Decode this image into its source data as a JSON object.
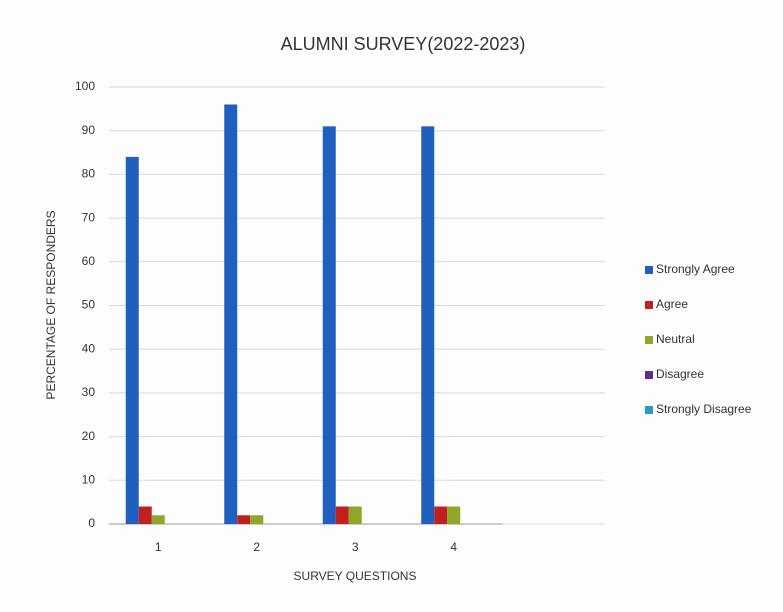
{
  "chart_data": {
    "type": "bar",
    "title": "ALUMNI SURVEY(2022-2023)",
    "x_label": "SURVEY QUESTIONS",
    "y_label": "PERCENTAGE OF RESPONDERS",
    "categories": [
      "1",
      "2",
      "3",
      "4"
    ],
    "series": [
      {
        "name": "Strongly Agree",
        "color": "#1f5fbf",
        "values": [
          84,
          96,
          91,
          91
        ]
      },
      {
        "name": "Agree",
        "color": "#c0211f",
        "values": [
          4,
          2,
          4,
          4
        ]
      },
      {
        "name": "Neutral",
        "color": "#8fa626",
        "values": [
          2,
          2,
          4,
          4
        ]
      },
      {
        "name": "Disagree",
        "color": "#5b2e8c",
        "values": [
          0,
          0,
          0,
          0
        ]
      },
      {
        "name": "Strongly Disagree",
        "color": "#2a9ab8",
        "values": [
          0,
          0,
          0,
          0
        ]
      }
    ],
    "ylim": [
      0,
      100
    ],
    "yticks": [
      0,
      10,
      20,
      30,
      40,
      50,
      60,
      70,
      80,
      90,
      100
    ],
    "grid": true,
    "legend": "right"
  }
}
